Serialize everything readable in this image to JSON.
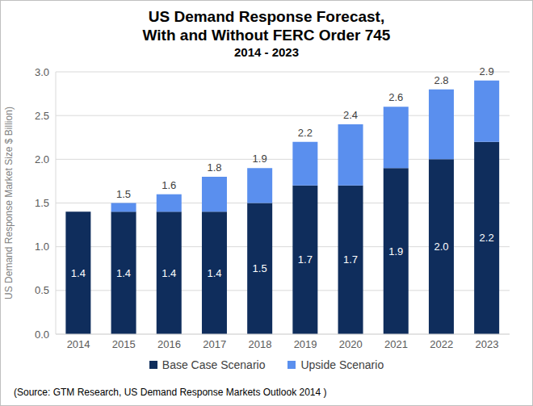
{
  "chart_data": {
    "type": "bar",
    "title": "US Demand Response Forecast,\nWith and Without FERC Order 745",
    "subtitle": "2014 - 2023",
    "y_label": "US Demand Response Market Size $ Billion)",
    "source": "(Source: GTM Research, US Demand Response Markets Outlook 2014 )",
    "categories": [
      "2014",
      "2015",
      "2016",
      "2017",
      "2018",
      "2019",
      "2020",
      "2021",
      "2022",
      "2023"
    ],
    "series": [
      {
        "name": "Base Case Scenario",
        "color": "#0f2d5c",
        "values": [
          1.4,
          1.4,
          1.4,
          1.4,
          1.5,
          1.7,
          1.7,
          1.9,
          2.0,
          2.2
        ],
        "value_labels": [
          "1.4",
          "1.4",
          "1.4",
          "1.4",
          "1.5",
          "1.7",
          "1.7",
          "1.9",
          "2.0",
          "2.2"
        ],
        "data_labels": true
      },
      {
        "name": "Upside Scenario",
        "color": "#5a8fee",
        "values": [
          null,
          0.1,
          0.2,
          0.4,
          0.4,
          0.5,
          0.7,
          0.7,
          0.8,
          0.7
        ],
        "totals": [
          null,
          1.5,
          1.6,
          1.8,
          1.9,
          2.2,
          2.4,
          2.6,
          2.8,
          2.9
        ]
      }
    ],
    "ylim": [
      0,
      3
    ],
    "yticks": [
      {
        "value": 0,
        "label": "0.0"
      },
      0.5,
      {
        "value": 1,
        "label": "1.0"
      },
      1.5,
      {
        "value": 2,
        "label": "2.0"
      },
      2.5,
      {
        "value": 3,
        "label": "3.0"
      }
    ],
    "grid": true,
    "stacked": true,
    "legend": "bottom"
  }
}
